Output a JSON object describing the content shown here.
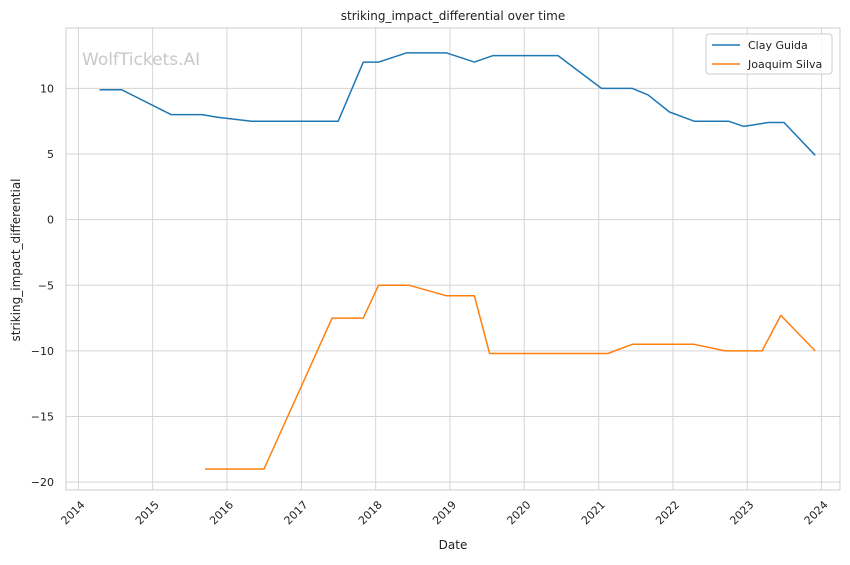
{
  "chart_data": {
    "type": "line",
    "title": "striking_impact_differential over time",
    "xlabel": "Date",
    "ylabel": "striking_impact_differential",
    "watermark": "WolfTickets.AI",
    "x_axis_type": "date",
    "xlim": [
      "2013-11-01",
      "2024-04-01"
    ],
    "ylim": [
      -20.6,
      14.6
    ],
    "x_ticks": [
      {
        "date": "2014-01-01",
        "label": "2014"
      },
      {
        "date": "2015-01-01",
        "label": "2015"
      },
      {
        "date": "2016-01-01",
        "label": "2016"
      },
      {
        "date": "2017-01-01",
        "label": "2017"
      },
      {
        "date": "2018-01-01",
        "label": "2018"
      },
      {
        "date": "2019-01-01",
        "label": "2019"
      },
      {
        "date": "2020-01-01",
        "label": "2020"
      },
      {
        "date": "2021-01-01",
        "label": "2021"
      },
      {
        "date": "2022-01-01",
        "label": "2022"
      },
      {
        "date": "2023-01-01",
        "label": "2023"
      },
      {
        "date": "2024-01-01",
        "label": "2024"
      }
    ],
    "y_ticks": [
      10,
      5,
      0,
      -5,
      -10,
      -15,
      -20
    ],
    "grid": true,
    "legend_position": "top-right",
    "series": [
      {
        "name": "Clay Guida",
        "color": "#1f77b4",
        "points": [
          {
            "x": "2014-04-15",
            "y": 9.9
          },
          {
            "x": "2014-08-01",
            "y": 9.9
          },
          {
            "x": "2015-04-01",
            "y": 8.0
          },
          {
            "x": "2015-09-01",
            "y": 8.0
          },
          {
            "x": "2015-11-15",
            "y": 7.8
          },
          {
            "x": "2016-05-01",
            "y": 7.5
          },
          {
            "x": "2017-07-01",
            "y": 7.5
          },
          {
            "x": "2017-11-01",
            "y": 12.0
          },
          {
            "x": "2018-01-15",
            "y": 12.0
          },
          {
            "x": "2018-06-01",
            "y": 12.7
          },
          {
            "x": "2018-12-15",
            "y": 12.7
          },
          {
            "x": "2019-05-01",
            "y": 12.0
          },
          {
            "x": "2019-08-01",
            "y": 12.5
          },
          {
            "x": "2020-06-15",
            "y": 12.5
          },
          {
            "x": "2021-01-15",
            "y": 10.0
          },
          {
            "x": "2021-06-15",
            "y": 10.0
          },
          {
            "x": "2021-09-01",
            "y": 9.5
          },
          {
            "x": "2021-12-15",
            "y": 8.2
          },
          {
            "x": "2022-04-15",
            "y": 7.5
          },
          {
            "x": "2022-10-01",
            "y": 7.5
          },
          {
            "x": "2022-12-15",
            "y": 7.1
          },
          {
            "x": "2023-04-15",
            "y": 7.4
          },
          {
            "x": "2023-07-01",
            "y": 7.4
          },
          {
            "x": "2023-12-01",
            "y": 4.9
          }
        ]
      },
      {
        "name": "Joaquim Silva",
        "color": "#ff7f0e",
        "points": [
          {
            "x": "2015-09-15",
            "y": -19.0
          },
          {
            "x": "2016-07-01",
            "y": -19.0
          },
          {
            "x": "2017-06-01",
            "y": -7.5
          },
          {
            "x": "2017-11-01",
            "y": -7.5
          },
          {
            "x": "2018-01-15",
            "y": -5.0
          },
          {
            "x": "2018-06-15",
            "y": -5.0
          },
          {
            "x": "2018-12-15",
            "y": -5.8
          },
          {
            "x": "2019-05-01",
            "y": -5.8
          },
          {
            "x": "2019-07-15",
            "y": -10.2
          },
          {
            "x": "2021-02-15",
            "y": -10.2
          },
          {
            "x": "2021-06-15",
            "y": -9.5
          },
          {
            "x": "2022-04-15",
            "y": -9.5
          },
          {
            "x": "2022-09-15",
            "y": -10.0
          },
          {
            "x": "2023-03-15",
            "y": -10.0
          },
          {
            "x": "2023-06-15",
            "y": -7.3
          },
          {
            "x": "2023-12-01",
            "y": -10.0
          }
        ]
      }
    ]
  }
}
